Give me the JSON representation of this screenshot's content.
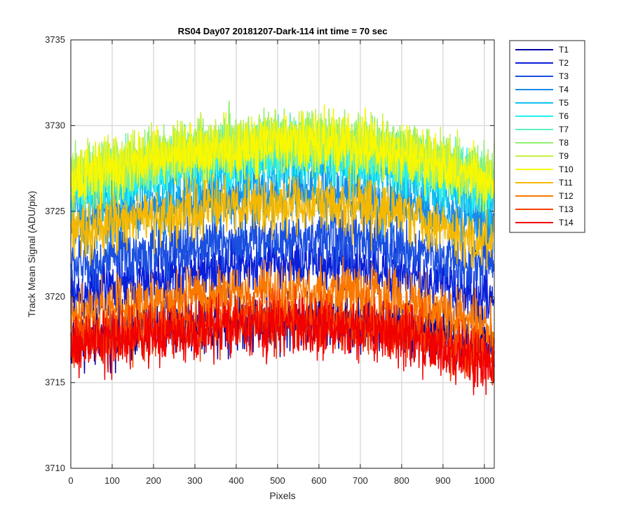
{
  "chart_data": {
    "type": "line",
    "title": "RS04 Day07 20181207-Dark-114 int time = 70 sec",
    "xlabel": "Pixels",
    "ylabel": "Track Mean Signal (ADU/pix)",
    "xlim": [
      0,
      1024
    ],
    "ylim": [
      3710,
      3735
    ],
    "xticks": [
      0,
      100,
      200,
      300,
      400,
      500,
      600,
      700,
      800,
      900,
      1000
    ],
    "yticks": [
      3710,
      3715,
      3720,
      3725,
      3730,
      3735
    ],
    "grid": true,
    "legend_position": "outside-right-top",
    "x_samples": [
      0,
      50,
      100,
      150,
      200,
      250,
      300,
      350,
      400,
      450,
      500,
      550,
      600,
      650,
      700,
      750,
      800,
      850,
      900,
      950,
      1000,
      1024
    ],
    "noise_amplitude": 2.5,
    "series": [
      {
        "name": "T1",
        "color": "#0000a0",
        "values": [
          3717.5,
          3717.5,
          3717.8,
          3718.0,
          3718.2,
          3718.4,
          3718.5,
          3718.6,
          3718.6,
          3718.7,
          3718.7,
          3718.7,
          3718.7,
          3718.6,
          3718.5,
          3718.4,
          3718.3,
          3718.1,
          3717.8,
          3717.4,
          3717.3,
          3717.2
        ]
      },
      {
        "name": "T2",
        "color": "#0a1fd8",
        "values": [
          3720.0,
          3720.2,
          3720.5,
          3720.8,
          3721.0,
          3721.3,
          3721.5,
          3721.7,
          3721.8,
          3721.9,
          3722.0,
          3722.0,
          3722.0,
          3721.9,
          3721.8,
          3721.6,
          3721.4,
          3721.1,
          3720.7,
          3720.3,
          3720.0,
          3719.8
        ]
      },
      {
        "name": "T3",
        "color": "#1a4fe0",
        "values": [
          3721.8,
          3722.0,
          3722.2,
          3722.4,
          3722.6,
          3722.8,
          3723.0,
          3723.2,
          3723.3,
          3723.4,
          3723.5,
          3723.5,
          3723.5,
          3723.4,
          3723.3,
          3723.1,
          3722.9,
          3722.6,
          3722.3,
          3722.0,
          3722.0,
          3722.0
        ]
      },
      {
        "name": "T4",
        "color": "#1a8ae6",
        "values": [
          3724.0,
          3724.3,
          3724.6,
          3724.9,
          3725.2,
          3725.4,
          3725.6,
          3725.8,
          3725.9,
          3726.0,
          3726.0,
          3726.0,
          3726.0,
          3725.9,
          3725.8,
          3725.6,
          3725.4,
          3725.1,
          3724.8,
          3724.5,
          3724.3,
          3724.2
        ]
      },
      {
        "name": "T5",
        "color": "#10c0f0",
        "values": [
          3725.5,
          3725.8,
          3726.1,
          3726.4,
          3726.7,
          3727.0,
          3727.2,
          3727.4,
          3727.5,
          3727.6,
          3727.7,
          3727.7,
          3727.7,
          3727.6,
          3727.5,
          3727.3,
          3727.1,
          3726.8,
          3726.4,
          3726.0,
          3725.7,
          3725.6
        ]
      },
      {
        "name": "T6",
        "color": "#20f0f0",
        "values": [
          3726.3,
          3726.6,
          3726.9,
          3727.2,
          3727.4,
          3727.7,
          3727.9,
          3728.0,
          3728.1,
          3728.2,
          3728.3,
          3728.3,
          3728.3,
          3728.2,
          3728.1,
          3727.9,
          3727.7,
          3727.4,
          3727.0,
          3726.6,
          3726.3,
          3726.2
        ]
      },
      {
        "name": "T7",
        "color": "#60f0c0",
        "values": [
          3726.7,
          3727.0,
          3727.3,
          3727.6,
          3727.8,
          3728.1,
          3728.3,
          3728.5,
          3728.6,
          3728.7,
          3728.8,
          3728.8,
          3728.8,
          3728.7,
          3728.6,
          3728.4,
          3728.2,
          3727.9,
          3727.5,
          3727.1,
          3726.8,
          3726.7
        ]
      },
      {
        "name": "T8",
        "color": "#90f070",
        "values": [
          3727.0,
          3727.3,
          3727.6,
          3727.9,
          3728.2,
          3728.5,
          3728.7,
          3728.9,
          3729.0,
          3729.1,
          3729.2,
          3729.2,
          3729.2,
          3729.1,
          3729.0,
          3728.8,
          3728.6,
          3728.3,
          3727.9,
          3727.5,
          3727.2,
          3727.1
        ]
      },
      {
        "name": "T9",
        "color": "#c8f040",
        "values": [
          3727.0,
          3727.3,
          3727.6,
          3727.9,
          3728.2,
          3728.5,
          3728.7,
          3728.9,
          3729.0,
          3729.1,
          3729.2,
          3729.2,
          3729.2,
          3729.1,
          3729.0,
          3728.8,
          3728.6,
          3728.3,
          3727.9,
          3727.5,
          3727.2,
          3727.1
        ]
      },
      {
        "name": "T10",
        "color": "#f8f800",
        "values": [
          3726.8,
          3727.1,
          3727.4,
          3727.7,
          3728.0,
          3728.2,
          3728.4,
          3728.6,
          3728.7,
          3728.8,
          3728.9,
          3728.9,
          3728.9,
          3728.8,
          3728.7,
          3728.5,
          3728.3,
          3728.0,
          3727.6,
          3727.2,
          3726.9,
          3726.8
        ]
      },
      {
        "name": "T11",
        "color": "#f5b800",
        "values": [
          3723.7,
          3723.9,
          3724.2,
          3724.4,
          3724.7,
          3724.9,
          3725.1,
          3725.2,
          3725.3,
          3725.4,
          3725.4,
          3725.4,
          3725.4,
          3725.3,
          3725.2,
          3725.0,
          3724.8,
          3724.5,
          3724.1,
          3723.7,
          3723.4,
          3723.3
        ]
      },
      {
        "name": "T12",
        "color": "#f87800",
        "values": [
          3718.8,
          3719.0,
          3719.2,
          3719.4,
          3719.6,
          3719.8,
          3720.0,
          3720.1,
          3720.2,
          3720.3,
          3720.3,
          3720.3,
          3720.3,
          3720.2,
          3720.1,
          3719.9,
          3719.7,
          3719.4,
          3719.0,
          3718.5,
          3718.1,
          3718.0
        ]
      },
      {
        "name": "T13",
        "color": "#f84000",
        "values": [
          3717.4,
          3717.6,
          3717.8,
          3718.0,
          3718.1,
          3718.3,
          3718.4,
          3718.5,
          3718.6,
          3718.6,
          3718.7,
          3718.7,
          3718.6,
          3718.6,
          3718.5,
          3718.3,
          3718.1,
          3717.8,
          3717.4,
          3716.9,
          3716.6,
          3716.5
        ]
      },
      {
        "name": "T14",
        "color": "#f00000",
        "values": [
          3717.0,
          3717.2,
          3717.4,
          3717.6,
          3717.7,
          3717.9,
          3718.0,
          3718.1,
          3718.2,
          3718.2,
          3718.3,
          3718.3,
          3718.2,
          3718.2,
          3718.1,
          3717.9,
          3717.7,
          3717.4,
          3717.0,
          3716.5,
          3716.2,
          3716.1
        ]
      }
    ]
  }
}
